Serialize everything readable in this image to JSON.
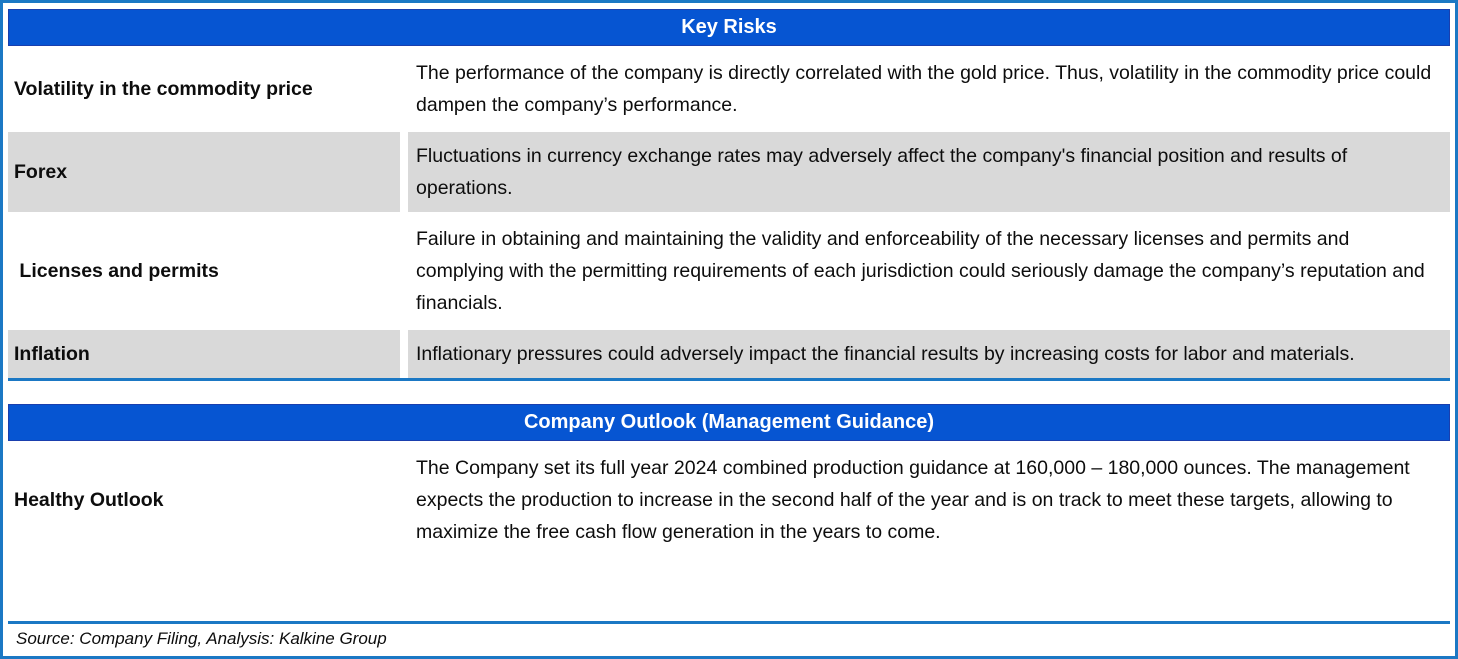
{
  "colors": {
    "header_blue": "#0655d2",
    "header_border": "#1a3fae",
    "line_blue": "#1b78c4",
    "row_gray": "#d9d9d9",
    "text_color": "#0d0d0d"
  },
  "key_risks": {
    "title": "Key Risks",
    "rows": [
      {
        "label": "Volatility in the commodity price",
        "description": "The performance of the company is directly correlated with the gold price. Thus, volatility in the commodity price could dampen the company’s performance."
      },
      {
        "label": "Forex",
        "description": "Fluctuations in currency exchange rates may adversely affect the company's financial position and results of operations."
      },
      {
        "label": " Licenses and permits",
        "description": "Failure in obtaining and maintaining the validity and enforceability of the necessary licenses and permits and complying with the permitting requirements of each jurisdiction could seriously damage the company’s reputation and financials."
      },
      {
        "label": "Inflation",
        "description": "Inflationary pressures could adversely impact the financial results by increasing costs for labor and materials."
      }
    ]
  },
  "company_outlook": {
    "title": "Company Outlook (Management Guidance)",
    "rows": [
      {
        "label": "Healthy Outlook",
        "description": "The Company set its full year 2024 combined production guidance at 160,000 – 180,000 ounces. The management expects the production to increase in the second half of the year and is on track to meet these targets, allowing to maximize the free cash flow generation in the years to come."
      }
    ]
  },
  "footer": {
    "source_text": "Source: Company Filing, Analysis: Kalkine Group"
  }
}
